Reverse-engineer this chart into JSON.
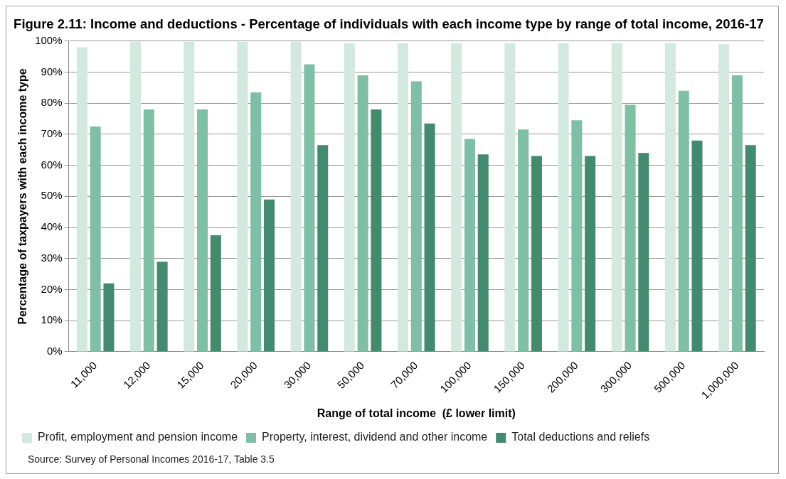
{
  "chart_data": {
    "type": "bar",
    "title": "Figure 2.11: Income and deductions - Percentage of individuals with each income type by range of total income, 2016-17",
    "xlabel": "Range of total income  (£ lower limit)",
    "ylabel": "Percentage of taxpayers with each income type",
    "categories": [
      "11,000",
      "12,000",
      "15,000",
      "20,000",
      "30,000",
      "50,000",
      "70,000",
      "100,000",
      "150,000",
      "200,000",
      "300,000",
      "500,000",
      "1,000,000"
    ],
    "series": [
      {
        "name": "Profit, employment and pension income",
        "color": "#d3e9e0",
        "values": [
          98,
          99.8,
          99.8,
          99.8,
          99.8,
          99.3,
          99.3,
          99.3,
          99.3,
          99.3,
          99.3,
          99.3,
          99
        ]
      },
      {
        "name": "Property, interest, dividend and other income",
        "color": "#7fbfa6",
        "values": [
          72.5,
          78,
          78,
          83.5,
          92.5,
          89,
          87,
          68.5,
          71.5,
          74.5,
          79.5,
          84,
          89
        ]
      },
      {
        "name": "Total deductions and reliefs",
        "color": "#448a6e",
        "values": [
          22,
          29,
          37.5,
          49,
          66.5,
          78,
          73.5,
          63.5,
          63,
          63,
          64,
          68,
          66.5
        ]
      }
    ],
    "ylim": [
      0,
      100
    ],
    "yticks": [
      {
        "value": 0,
        "label": "0%"
      },
      {
        "value": 10,
        "label": "10%"
      },
      {
        "value": 20,
        "label": "20%"
      },
      {
        "value": 30,
        "label": "30%"
      },
      {
        "value": 40,
        "label": "40%"
      },
      {
        "value": 50,
        "label": "50%"
      },
      {
        "value": 60,
        "label": "60%"
      },
      {
        "value": 70,
        "label": "70%"
      },
      {
        "value": 80,
        "label": "80%"
      },
      {
        "value": 90,
        "label": "90%"
      },
      {
        "value": 100,
        "label": "100%"
      }
    ],
    "grid": "y",
    "legend": "bottom",
    "annotations": [
      "Source: Survey of Personal Incomes 2016-17, Table 3.5"
    ]
  }
}
